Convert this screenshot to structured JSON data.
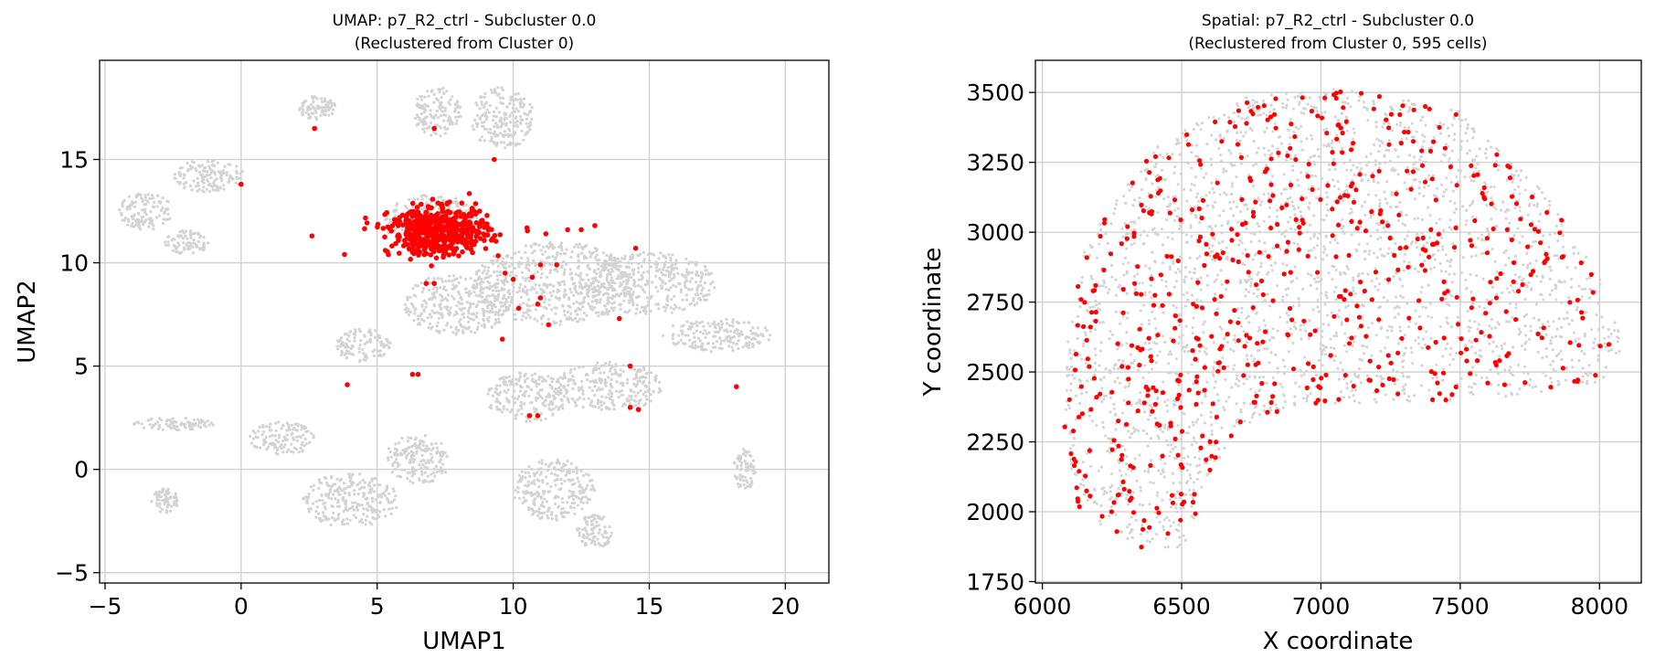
{
  "chart_data": [
    {
      "type": "scatter",
      "title": "UMAP: p7_R2_ctrl - Subcluster 0.0",
      "subtitle": "(Reclustered from Cluster 0)",
      "xlabel": "UMAP1",
      "ylabel": "UMAP2",
      "xlim": [
        -5.2,
        21.6
      ],
      "ylim": [
        -5.5,
        19.8
      ],
      "xticks": [
        -5,
        0,
        5,
        10,
        15,
        20
      ],
      "yticks": [
        -5,
        0,
        5,
        10,
        15
      ],
      "grid": true,
      "colors": {
        "background_points": "#d3d3d3",
        "highlight_points": "#ff0000"
      },
      "background_regions": [
        [
          -3.5,
          12.5,
          1.0,
          0.9
        ],
        [
          -1.2,
          14.2,
          1.3,
          0.8
        ],
        [
          -2.0,
          11.0,
          0.8,
          0.6
        ],
        [
          2.8,
          17.5,
          0.7,
          0.6
        ],
        [
          7.2,
          17.3,
          0.9,
          1.2
        ],
        [
          9.6,
          17.0,
          1.2,
          1.5
        ],
        [
          7.0,
          12.0,
          1.8,
          1.3
        ],
        [
          11.5,
          9.0,
          3.0,
          2.0
        ],
        [
          15.0,
          9.0,
          2.5,
          1.5
        ],
        [
          17.5,
          6.5,
          2.0,
          0.8
        ],
        [
          13.5,
          4.0,
          2.0,
          1.2
        ],
        [
          8.0,
          8.0,
          2.0,
          1.5
        ],
        [
          10.5,
          3.5,
          1.5,
          1.2
        ],
        [
          -2.5,
          2.2,
          1.5,
          0.3
        ],
        [
          1.5,
          1.5,
          1.2,
          0.8
        ],
        [
          4.0,
          -1.5,
          1.8,
          1.3
        ],
        [
          6.5,
          0.5,
          1.2,
          1.2
        ],
        [
          11.5,
          -1.0,
          1.5,
          1.5
        ],
        [
          13.0,
          -3.0,
          0.7,
          0.8
        ],
        [
          -2.8,
          -1.5,
          0.5,
          0.6
        ],
        [
          4.5,
          6.0,
          1.0,
          0.8
        ],
        [
          18.5,
          0.0,
          0.4,
          1.0
        ]
      ],
      "cluster_core": {
        "center": [
          7.3,
          11.5
        ],
        "spread": [
          1.2,
          0.8
        ]
      },
      "highlight_points": [
        [
          0.0,
          13.8
        ],
        [
          2.7,
          16.5
        ],
        [
          7.1,
          16.5
        ],
        [
          9.3,
          15.0
        ],
        [
          2.6,
          11.3
        ],
        [
          3.8,
          10.4
        ],
        [
          5.3,
          10.6
        ],
        [
          7.1,
          9.0
        ],
        [
          6.8,
          9.0
        ],
        [
          9.7,
          9.5
        ],
        [
          10.0,
          9.2
        ],
        [
          10.7,
          9.3
        ],
        [
          11.0,
          9.9
        ],
        [
          11.6,
          9.9
        ],
        [
          10.2,
          7.8
        ],
        [
          10.9,
          8.0
        ],
        [
          11.0,
          8.3
        ],
        [
          11.3,
          7.0
        ],
        [
          9.6,
          6.3
        ],
        [
          12.0,
          11.6
        ],
        [
          12.5,
          11.6
        ],
        [
          13.0,
          11.8
        ],
        [
          14.5,
          10.7
        ],
        [
          11.2,
          11.4
        ],
        [
          13.9,
          7.3
        ],
        [
          14.3,
          5.0
        ],
        [
          14.3,
          3.0
        ],
        [
          14.6,
          2.9
        ],
        [
          3.9,
          4.1
        ],
        [
          6.3,
          4.6
        ],
        [
          6.5,
          4.6
        ],
        [
          10.6,
          2.6
        ],
        [
          10.9,
          2.6
        ],
        [
          18.2,
          4.0
        ]
      ]
    },
    {
      "type": "scatter",
      "title": "Spatial: p7_R2_ctrl - Subcluster 0.0",
      "subtitle": "(Reclustered from Cluster 0, 595 cells)",
      "xlabel": "X coordinate",
      "ylabel": "Y coordinate",
      "xlim": [
        5975,
        8150
      ],
      "ylim": [
        1745,
        3615
      ],
      "xticks": [
        6000,
        6500,
        7000,
        7500,
        8000
      ],
      "yticks": [
        1750,
        2000,
        2250,
        2500,
        2750,
        3000,
        3250,
        3500
      ],
      "grid": true,
      "colors": {
        "background_points": "#d3d3d3",
        "highlight_points": "#ff0000"
      },
      "tissue_outline": [
        [
          6130,
          2000
        ],
        [
          6360,
          1850
        ],
        [
          6520,
          1880
        ],
        [
          6580,
          2100
        ],
        [
          6700,
          2300
        ],
        [
          6900,
          2380
        ],
        [
          7200,
          2390
        ],
        [
          7500,
          2390
        ],
        [
          7800,
          2430
        ],
        [
          8010,
          2450
        ],
        [
          8090,
          2600
        ],
        [
          8000,
          2850
        ],
        [
          7800,
          3150
        ],
        [
          7500,
          3430
        ],
        [
          7100,
          3520
        ],
        [
          6700,
          3480
        ],
        [
          6400,
          3300
        ],
        [
          6150,
          2950
        ],
        [
          6090,
          2600
        ],
        [
          6080,
          2300
        ]
      ],
      "highlight_count": 595
    }
  ]
}
